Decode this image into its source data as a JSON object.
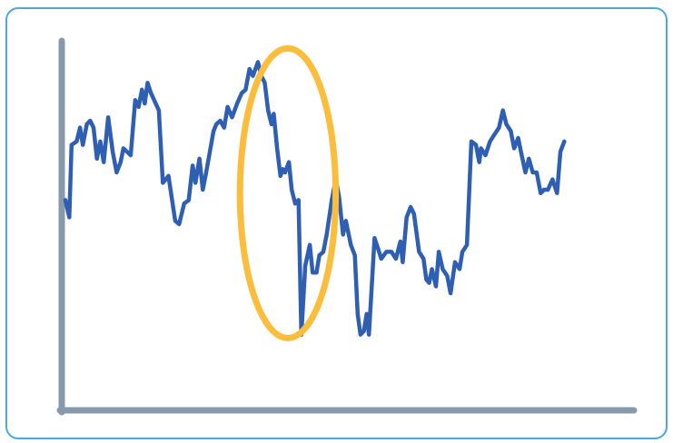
{
  "chart_data": {
    "type": "line",
    "title": "",
    "xlabel": "",
    "ylabel": "",
    "grid": false,
    "legend": "none",
    "xlim": [
      0,
      100
    ],
    "ylim": [
      0,
      100
    ],
    "series": [
      {
        "color": "#2f5fb3",
        "points": [
          [
            0,
            52
          ],
          [
            0.7,
            47
          ],
          [
            1.1,
            68
          ],
          [
            2,
            69
          ],
          [
            2.6,
            73
          ],
          [
            3.1,
            68
          ],
          [
            3.8,
            74
          ],
          [
            4.4,
            75
          ],
          [
            5,
            73
          ],
          [
            5.6,
            64
          ],
          [
            6.2,
            69
          ],
          [
            6.8,
            63
          ],
          [
            7.6,
            76
          ],
          [
            8.4,
            66
          ],
          [
            9.1,
            60
          ],
          [
            9.8,
            63
          ],
          [
            10.3,
            67
          ],
          [
            11.6,
            65
          ],
          [
            12.4,
            81
          ],
          [
            13,
            79
          ],
          [
            13.6,
            84
          ],
          [
            14.1,
            80
          ],
          [
            14.6,
            86
          ],
          [
            15.2,
            83
          ],
          [
            16.6,
            78
          ],
          [
            17.3,
            57
          ],
          [
            18.3,
            59
          ],
          [
            19.5,
            46
          ],
          [
            20.2,
            45
          ],
          [
            21.1,
            51
          ],
          [
            21.9,
            52
          ],
          [
            22.6,
            62
          ],
          [
            23.1,
            57
          ],
          [
            23.8,
            64
          ],
          [
            24.4,
            55
          ],
          [
            25,
            60
          ],
          [
            26.3,
            72
          ],
          [
            26.8,
            74
          ],
          [
            27.5,
            75
          ],
          [
            28.2,
            73
          ],
          [
            28.8,
            79
          ],
          [
            29.6,
            76
          ],
          [
            30.5,
            80
          ],
          [
            31.3,
            83
          ],
          [
            32,
            84
          ],
          [
            32.7,
            90
          ],
          [
            33.3,
            88
          ],
          [
            34.2,
            92
          ],
          [
            34.8,
            88
          ],
          [
            35.4,
            86
          ],
          [
            36,
            78
          ],
          [
            36.6,
            74
          ],
          [
            37,
            77
          ],
          [
            37.6,
            67
          ],
          [
            38.2,
            59
          ],
          [
            38.6,
            61
          ],
          [
            39,
            60
          ],
          [
            39.7,
            63
          ],
          [
            40.2,
            55
          ],
          [
            40.8,
            51
          ],
          [
            41.4,
            52
          ],
          [
            41.9,
            13
          ],
          [
            42.6,
            33
          ],
          [
            43.4,
            39
          ],
          [
            43.9,
            31
          ],
          [
            44.6,
            31
          ],
          [
            45.1,
            36
          ],
          [
            45.8,
            37
          ],
          [
            46.4,
            42
          ],
          [
            47.3,
            52
          ],
          [
            48,
            58
          ],
          [
            48.6,
            53
          ],
          [
            49.3,
            42
          ],
          [
            49.8,
            46
          ],
          [
            50.7,
            39
          ],
          [
            51.4,
            36
          ],
          [
            51.9,
            19
          ],
          [
            52.4,
            13
          ],
          [
            53,
            14
          ],
          [
            53.5,
            19
          ],
          [
            53.9,
            13
          ],
          [
            54.9,
            41
          ],
          [
            55.3,
            39
          ],
          [
            56.1,
            35
          ],
          [
            57,
            37
          ],
          [
            57.9,
            37
          ],
          [
            58.7,
            35
          ],
          [
            59.5,
            40
          ],
          [
            59.9,
            34
          ],
          [
            60.6,
            47
          ],
          [
            61.3,
            50
          ],
          [
            61.9,
            48
          ],
          [
            62.8,
            37
          ],
          [
            63.6,
            35
          ],
          [
            64.1,
            29
          ],
          [
            64.6,
            28
          ],
          [
            65.1,
            32
          ],
          [
            65.8,
            27
          ],
          [
            66.3,
            37
          ],
          [
            67,
            32
          ],
          [
            67.8,
            30
          ],
          [
            68.4,
            25
          ],
          [
            69.2,
            34
          ],
          [
            70,
            32
          ],
          [
            70.5,
            37
          ],
          [
            71.3,
            39
          ],
          [
            72.1,
            69
          ],
          [
            72.9,
            68
          ],
          [
            73.5,
            63
          ],
          [
            73.8,
            67
          ],
          [
            74.6,
            65
          ],
          [
            75.4,
            69
          ],
          [
            76.2,
            71
          ],
          [
            77,
            73
          ],
          [
            77.7,
            78
          ],
          [
            78.3,
            74
          ],
          [
            79.1,
            72
          ],
          [
            79.7,
            67
          ],
          [
            80.4,
            70
          ],
          [
            80.9,
            66
          ],
          [
            81.7,
            60
          ],
          [
            82.3,
            64
          ],
          [
            83,
            60
          ],
          [
            83.7,
            60
          ],
          [
            84.4,
            54
          ],
          [
            85,
            55
          ],
          [
            85.7,
            55
          ],
          [
            86.5,
            58
          ],
          [
            87.3,
            54
          ],
          [
            87.9,
            66
          ],
          [
            88.6,
            69
          ]
        ]
      }
    ],
    "annotations": [
      {
        "type": "ellipse-highlight",
        "color": "#fbbd3c",
        "x_range": [
          31,
          48
        ],
        "y_range": [
          12,
          96
        ]
      }
    ]
  },
  "colors": {
    "card_border": "#4aa8dd",
    "axis": "#8899ab",
    "line": "#2f5fb3",
    "highlight": "#fbbd3c"
  }
}
